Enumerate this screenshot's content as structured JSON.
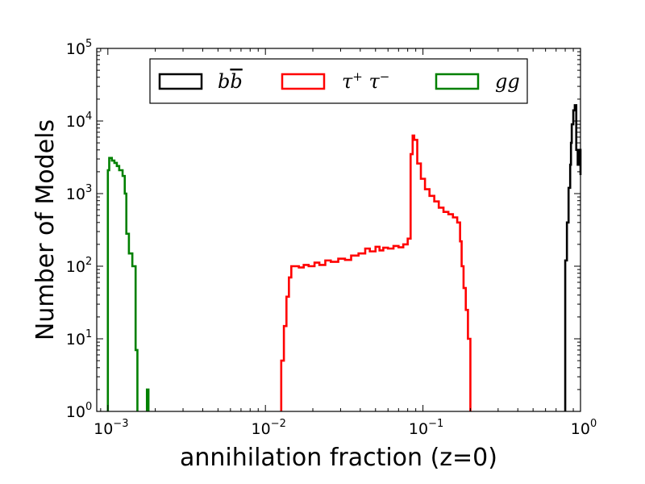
{
  "chart_data": {
    "type": "histogram",
    "title": "",
    "xlabel": "annihilation fraction (z=0)",
    "ylabel": "Number of Models",
    "xscale": "log",
    "yscale": "log",
    "xlim": [
      0.00085,
      1.0
    ],
    "ylim": [
      1,
      100000
    ],
    "x_ticks": [
      {
        "value": 0.001,
        "base": "10",
        "exp": "−3"
      },
      {
        "value": 0.01,
        "base": "10",
        "exp": "−2"
      },
      {
        "value": 0.1,
        "base": "10",
        "exp": "−1"
      },
      {
        "value": 1,
        "base": "10",
        "exp": "0"
      }
    ],
    "y_ticks": [
      {
        "value": 1,
        "base": "10",
        "exp": "0"
      },
      {
        "value": 10,
        "base": "10",
        "exp": "1"
      },
      {
        "value": 100,
        "base": "10",
        "exp": "2"
      },
      {
        "value": 1000,
        "base": "10",
        "exp": "3"
      },
      {
        "value": 10000,
        "base": "10",
        "exp": "4"
      },
      {
        "value": 100000,
        "base": "10",
        "exp": "5"
      }
    ],
    "legend_position": "top-center",
    "series": [
      {
        "name": "bb̄",
        "label_base": "b",
        "label_bar": "b",
        "color": "#000000",
        "steps": [
          [
            0.8,
            1
          ],
          [
            0.8,
            120
          ],
          [
            0.82,
            120
          ],
          [
            0.82,
            400
          ],
          [
            0.84,
            400
          ],
          [
            0.84,
            1200
          ],
          [
            0.86,
            1200
          ],
          [
            0.86,
            2500
          ],
          [
            0.87,
            2500
          ],
          [
            0.87,
            5000
          ],
          [
            0.88,
            5000
          ],
          [
            0.88,
            9000
          ],
          [
            0.9,
            9000
          ],
          [
            0.9,
            14000
          ],
          [
            0.92,
            14000
          ],
          [
            0.92,
            16500
          ],
          [
            0.94,
            16500
          ],
          [
            0.94,
            4000
          ],
          [
            0.96,
            4000
          ],
          [
            0.96,
            2500
          ],
          [
            0.98,
            2500
          ],
          [
            0.98,
            4000
          ],
          [
            1.0,
            4000
          ],
          [
            1.0,
            1800
          ]
        ]
      },
      {
        "name": "τ⁺τ⁻",
        "label_main": "τ",
        "label_sup1": "+",
        "label_main2": " τ",
        "label_sup2": "−",
        "color": "#ff0000",
        "steps": [
          [
            0.0126,
            1
          ],
          [
            0.0126,
            5
          ],
          [
            0.0131,
            5
          ],
          [
            0.0131,
            15
          ],
          [
            0.0136,
            15
          ],
          [
            0.0136,
            38
          ],
          [
            0.0141,
            38
          ],
          [
            0.0141,
            70
          ],
          [
            0.0146,
            70
          ],
          [
            0.0146,
            100
          ],
          [
            0.0163,
            100
          ],
          [
            0.0163,
            96
          ],
          [
            0.0175,
            96
          ],
          [
            0.0175,
            104
          ],
          [
            0.0188,
            104
          ],
          [
            0.0188,
            100
          ],
          [
            0.0205,
            100
          ],
          [
            0.0205,
            112
          ],
          [
            0.022,
            112
          ],
          [
            0.022,
            104
          ],
          [
            0.024,
            104
          ],
          [
            0.024,
            120
          ],
          [
            0.026,
            120
          ],
          [
            0.026,
            115
          ],
          [
            0.029,
            115
          ],
          [
            0.029,
            127
          ],
          [
            0.032,
            127
          ],
          [
            0.032,
            122
          ],
          [
            0.035,
            122
          ],
          [
            0.035,
            140
          ],
          [
            0.039,
            140
          ],
          [
            0.039,
            150
          ],
          [
            0.043,
            150
          ],
          [
            0.043,
            175
          ],
          [
            0.046,
            175
          ],
          [
            0.046,
            160
          ],
          [
            0.05,
            160
          ],
          [
            0.05,
            185
          ],
          [
            0.053,
            185
          ],
          [
            0.053,
            165
          ],
          [
            0.056,
            165
          ],
          [
            0.056,
            180
          ],
          [
            0.06,
            180
          ],
          [
            0.06,
            175
          ],
          [
            0.065,
            175
          ],
          [
            0.065,
            190
          ],
          [
            0.07,
            190
          ],
          [
            0.07,
            182
          ],
          [
            0.075,
            182
          ],
          [
            0.075,
            200
          ],
          [
            0.08,
            200
          ],
          [
            0.08,
            240
          ],
          [
            0.0835,
            240
          ],
          [
            0.0835,
            3500
          ],
          [
            0.086,
            3500
          ],
          [
            0.086,
            6300
          ],
          [
            0.088,
            6300
          ],
          [
            0.088,
            5500
          ],
          [
            0.092,
            5500
          ],
          [
            0.092,
            2600
          ],
          [
            0.097,
            2600
          ],
          [
            0.097,
            1600
          ],
          [
            0.103,
            1600
          ],
          [
            0.103,
            1150
          ],
          [
            0.11,
            1150
          ],
          [
            0.11,
            930
          ],
          [
            0.118,
            930
          ],
          [
            0.118,
            780
          ],
          [
            0.126,
            780
          ],
          [
            0.126,
            640
          ],
          [
            0.135,
            640
          ],
          [
            0.135,
            560
          ],
          [
            0.145,
            560
          ],
          [
            0.145,
            520
          ],
          [
            0.155,
            520
          ],
          [
            0.155,
            470
          ],
          [
            0.165,
            470
          ],
          [
            0.165,
            400
          ],
          [
            0.172,
            400
          ],
          [
            0.172,
            220
          ],
          [
            0.176,
            220
          ],
          [
            0.176,
            100
          ],
          [
            0.181,
            100
          ],
          [
            0.181,
            50
          ],
          [
            0.187,
            50
          ],
          [
            0.187,
            25
          ],
          [
            0.193,
            25
          ],
          [
            0.193,
            10
          ],
          [
            0.2,
            10
          ],
          [
            0.2,
            1
          ]
        ]
      },
      {
        "name": "gg",
        "label": "gg",
        "color": "#008000",
        "steps": [
          [
            0.001,
            1
          ],
          [
            0.001,
            2100
          ],
          [
            0.00102,
            2100
          ],
          [
            0.00102,
            3100
          ],
          [
            0.00106,
            3100
          ],
          [
            0.00106,
            2850
          ],
          [
            0.0011,
            2850
          ],
          [
            0.0011,
            2650
          ],
          [
            0.00114,
            2650
          ],
          [
            0.00114,
            2400
          ],
          [
            0.00118,
            2400
          ],
          [
            0.00118,
            2100
          ],
          [
            0.00124,
            2100
          ],
          [
            0.00124,
            1750
          ],
          [
            0.00128,
            1750
          ],
          [
            0.00128,
            1000
          ],
          [
            0.00131,
            1000
          ],
          [
            0.00131,
            280
          ],
          [
            0.00136,
            280
          ],
          [
            0.00136,
            150
          ],
          [
            0.00143,
            150
          ],
          [
            0.00143,
            100
          ],
          [
            0.0015,
            100
          ],
          [
            0.0015,
            7
          ],
          [
            0.00154,
            7
          ],
          [
            0.00154,
            1
          ]
        ],
        "extra_bars": [
          {
            "x0": 0.00177,
            "x1": 0.00181,
            "y": 2
          }
        ]
      }
    ]
  }
}
